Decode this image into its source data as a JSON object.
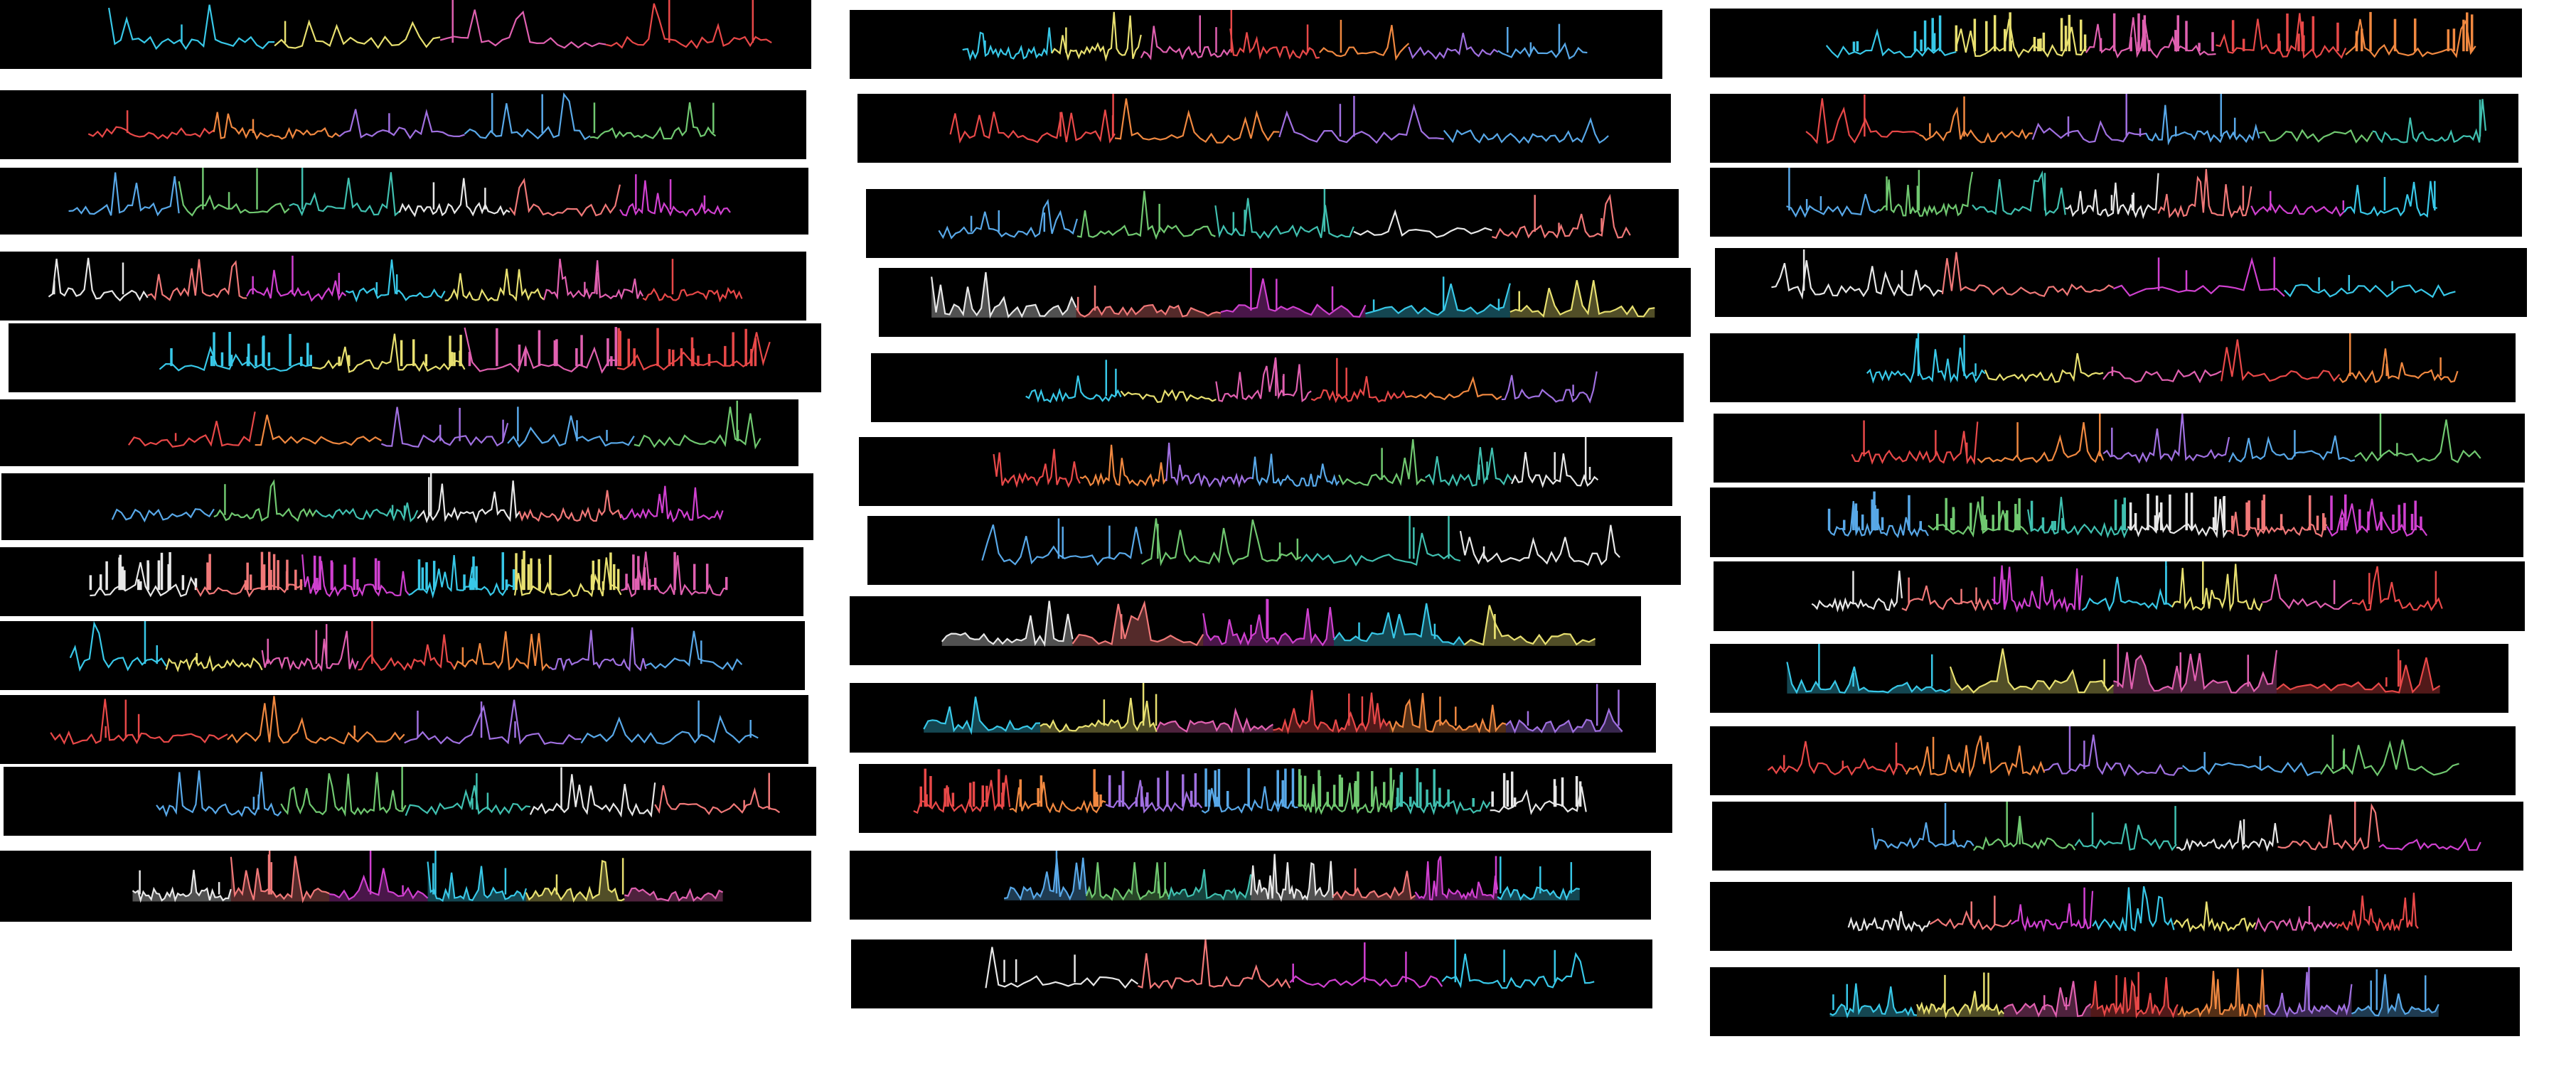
{
  "palette": {
    "cyan": "#38c8e8",
    "yellow": "#e8e070",
    "pink": "#e060b0",
    "red": "#e84848",
    "orange": "#f08840",
    "purple": "#a070e0",
    "blue": "#58a8e8",
    "green": "#70c870",
    "teal": "#40c0b0",
    "white": "#e8e8e8",
    "salmon": "#f07878",
    "magenta": "#d040d0"
  },
  "chart_data": [
    {
      "type": "line",
      "title": "",
      "xlabel": "",
      "ylabel": ""
    },
    {
      "type": "line",
      "title": "",
      "xlabel": "",
      "ylabel": ""
    },
    {
      "type": "line",
      "title": "",
      "xlabel": "",
      "ylabel": ""
    },
    {
      "type": "line",
      "title": "",
      "xlabel": "",
      "ylabel": ""
    },
    {
      "type": "bar",
      "title": "",
      "xlabel": "",
      "ylabel": ""
    },
    {
      "type": "line",
      "title": "",
      "xlabel": "",
      "ylabel": ""
    },
    {
      "type": "line",
      "title": "",
      "xlabel": "",
      "ylabel": ""
    },
    {
      "type": "bar",
      "title": "",
      "xlabel": "",
      "ylabel": ""
    },
    {
      "type": "line",
      "title": "",
      "xlabel": "",
      "ylabel": ""
    },
    {
      "type": "line",
      "title": "",
      "xlabel": "",
      "ylabel": ""
    },
    {
      "type": "line",
      "title": "",
      "xlabel": "",
      "ylabel": ""
    },
    {
      "type": "area",
      "title": "",
      "xlabel": "",
      "ylabel": ""
    },
    {
      "type": "line",
      "title": "",
      "xlabel": "",
      "ylabel": ""
    },
    {
      "type": "line",
      "title": "",
      "xlabel": "",
      "ylabel": ""
    },
    {
      "type": "line",
      "title": "",
      "xlabel": "",
      "ylabel": ""
    },
    {
      "type": "area",
      "title": "",
      "xlabel": "",
      "ylabel": ""
    },
    {
      "type": "line",
      "title": "",
      "xlabel": "",
      "ylabel": ""
    },
    {
      "type": "line",
      "title": "",
      "xlabel": "",
      "ylabel": ""
    },
    {
      "type": "line",
      "title": "",
      "xlabel": "",
      "ylabel": ""
    },
    {
      "type": "area",
      "title": "",
      "xlabel": "",
      "ylabel": ""
    },
    {
      "type": "area",
      "title": "",
      "xlabel": "",
      "ylabel": ""
    },
    {
      "type": "bar",
      "title": "",
      "xlabel": "",
      "ylabel": ""
    },
    {
      "type": "area",
      "title": "",
      "xlabel": "",
      "ylabel": ""
    },
    {
      "type": "line",
      "title": "",
      "xlabel": "",
      "ylabel": ""
    },
    {
      "type": "bar",
      "title": "",
      "xlabel": "",
      "ylabel": ""
    },
    {
      "type": "line",
      "title": "",
      "xlabel": "",
      "ylabel": ""
    },
    {
      "type": "line",
      "title": "",
      "xlabel": "",
      "ylabel": ""
    },
    {
      "type": "line",
      "title": "",
      "xlabel": "",
      "ylabel": ""
    },
    {
      "type": "line",
      "title": "",
      "xlabel": "",
      "ylabel": ""
    },
    {
      "type": "line",
      "title": "",
      "xlabel": "",
      "ylabel": ""
    },
    {
      "type": "bar",
      "title": "",
      "xlabel": "",
      "ylabel": ""
    },
    {
      "type": "line",
      "title": "",
      "xlabel": "",
      "ylabel": ""
    },
    {
      "type": "area",
      "title": "",
      "xlabel": "",
      "ylabel": ""
    },
    {
      "type": "line",
      "title": "",
      "xlabel": "",
      "ylabel": ""
    },
    {
      "type": "line",
      "title": "",
      "xlabel": "",
      "ylabel": ""
    },
    {
      "type": "line",
      "title": "",
      "xlabel": "",
      "ylabel": ""
    },
    {
      "type": "area",
      "title": "",
      "xlabel": "",
      "ylabel": ""
    },
    {
      "type": "line",
      "title": "",
      "xlabel": "",
      "ylabel": ""
    }
  ]
}
